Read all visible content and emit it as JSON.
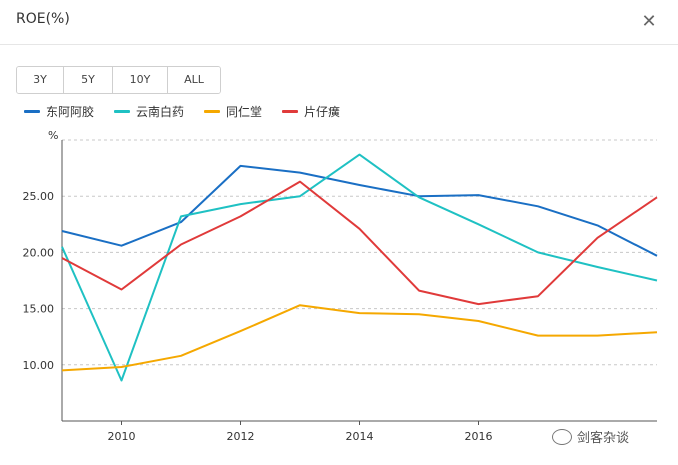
{
  "window": {
    "title": "ROE(%)",
    "close_glyph": "✕"
  },
  "range_buttons": [
    "3Y",
    "5Y",
    "10Y",
    "ALL"
  ],
  "colors": {
    "东阿阿胶": "#1a6fc4",
    "云南白药": "#1fc1c3",
    "同仁堂": "#f5a800",
    "片仔癀": "#e03a3a",
    "grid": "#c8c8c8",
    "axis": "#555555"
  },
  "chart_data": {
    "type": "line",
    "y_unit": "%",
    "x": [
      2009,
      2010,
      2011,
      2012,
      2013,
      2014,
      2015,
      2016,
      2017,
      2018,
      2019
    ],
    "x_range": [
      2009,
      2019
    ],
    "xticks": [
      "2010",
      "2012",
      "2014",
      "2016"
    ],
    "xtick_values": [
      2010,
      2012,
      2014,
      2016
    ],
    "ylim": [
      5,
      30
    ],
    "yticks": [
      "10.00",
      "15.00",
      "20.00",
      "25.00"
    ],
    "ytick_values": [
      10,
      15,
      20,
      25
    ],
    "grid": true,
    "legend_position": "top-left",
    "series": [
      {
        "name": "东阿阿胶",
        "values": [
          21.9,
          20.6,
          22.7,
          27.7,
          27.1,
          26.0,
          25.0,
          25.1,
          24.1,
          22.4,
          19.7
        ]
      },
      {
        "name": "云南白药",
        "values": [
          20.5,
          8.6,
          23.2,
          24.3,
          25.0,
          28.7,
          24.9,
          22.5,
          20.0,
          18.7,
          17.5
        ]
      },
      {
        "name": "同仁堂",
        "values": [
          9.5,
          9.8,
          10.8,
          13.0,
          15.3,
          14.6,
          14.5,
          13.9,
          12.6,
          12.6,
          12.9
        ]
      },
      {
        "name": "片仔癀",
        "values": [
          19.5,
          16.7,
          20.7,
          23.2,
          26.3,
          22.1,
          16.6,
          15.4,
          16.1,
          21.3,
          24.9
        ]
      }
    ]
  },
  "watermark": {
    "text": "剑客杂谈",
    "icon": "wechat-icon"
  }
}
